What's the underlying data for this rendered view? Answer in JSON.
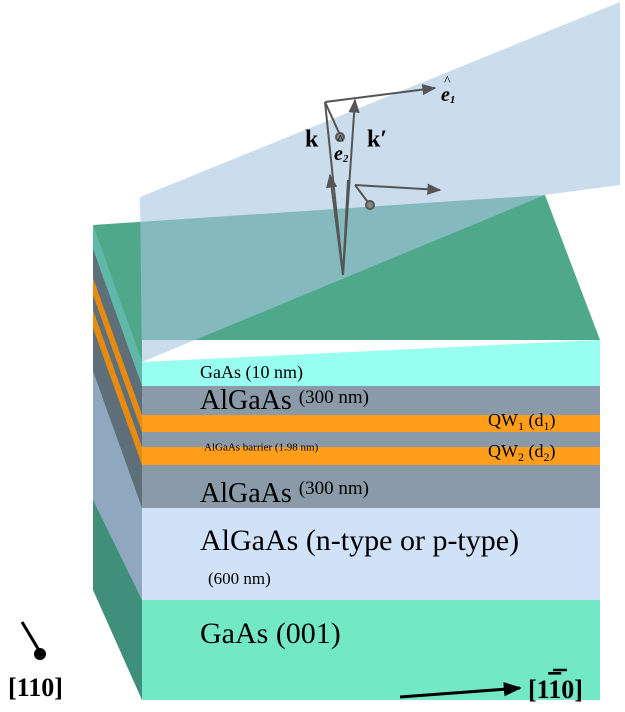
{
  "vectors": {
    "k": "k",
    "k_prime": "k′",
    "e1": {
      "base": "e",
      "hat": "^",
      "sub": "1"
    },
    "e2": {
      "base": "e",
      "hat": "^",
      "sub": "2"
    }
  },
  "layers": {
    "cap": {
      "name": "GaAs",
      "thickness": "(10 nm)"
    },
    "barrier_top": {
      "name": "AlGaAs",
      "thickness": "(300 nm)"
    },
    "qw1": {
      "parts": [
        "QW",
        "1",
        " (d",
        "1",
        ")"
      ]
    },
    "middle_barrier": {
      "label": "AlGaAs barrier (1.98 nm)"
    },
    "qw2": {
      "parts": [
        "QW",
        "2",
        " (d",
        "2",
        ")"
      ]
    },
    "barrier_bottom": {
      "name": "AlGaAs",
      "thickness": "(300 nm)"
    },
    "doped": {
      "name": "AlGaAs (n-type or p-type)",
      "thickness": "(600 nm)"
    },
    "substrate": {
      "name": "GaAs (001)"
    }
  },
  "axes": {
    "x110": "[110]",
    "x1m10": {
      "open": "[1",
      "bar": "1",
      "close": "0]"
    }
  }
}
